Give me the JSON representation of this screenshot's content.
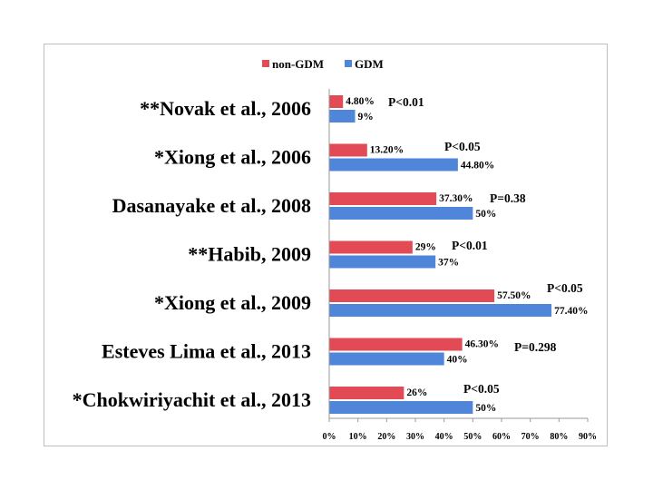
{
  "chart_data": {
    "type": "bar",
    "orientation": "horizontal",
    "categories": [
      "**Novak et al., 2006",
      "*Xiong et al., 2006",
      "Dasanayake et al., 2008",
      "**Habib, 2009",
      "*Xiong et al., 2009",
      "Esteves Lima et al., 2013",
      "*Chokwiriyachit et al., 2013"
    ],
    "series": [
      {
        "name": "non-GDM",
        "color": "#e24b55",
        "values": [
          4.8,
          13.2,
          37.3,
          29,
          57.5,
          46.3,
          26
        ],
        "labels": [
          "4.80%",
          "13.20%",
          "37.30%",
          "29%",
          "57.50%",
          "46.30%",
          "26%"
        ]
      },
      {
        "name": "GDM",
        "color": "#4f86d9",
        "values": [
          9,
          44.8,
          50,
          37,
          77.4,
          40,
          50
        ],
        "labels": [
          "9%",
          "44.80%",
          "50%",
          "37%",
          "77.40%",
          "40%",
          "50%"
        ]
      }
    ],
    "annotations": [
      "P<0.01",
      "P<0.05",
      "P=0.38",
      "P<0.01",
      "P<0.05",
      "P=0.298",
      "P<0.05"
    ],
    "xlim": [
      0,
      90
    ],
    "xticks": [
      "0%",
      "10%",
      "20%",
      "30%",
      "40%",
      "50%",
      "60%",
      "70%",
      "80%",
      "90%"
    ],
    "legend_position": "top",
    "grid": false
  }
}
